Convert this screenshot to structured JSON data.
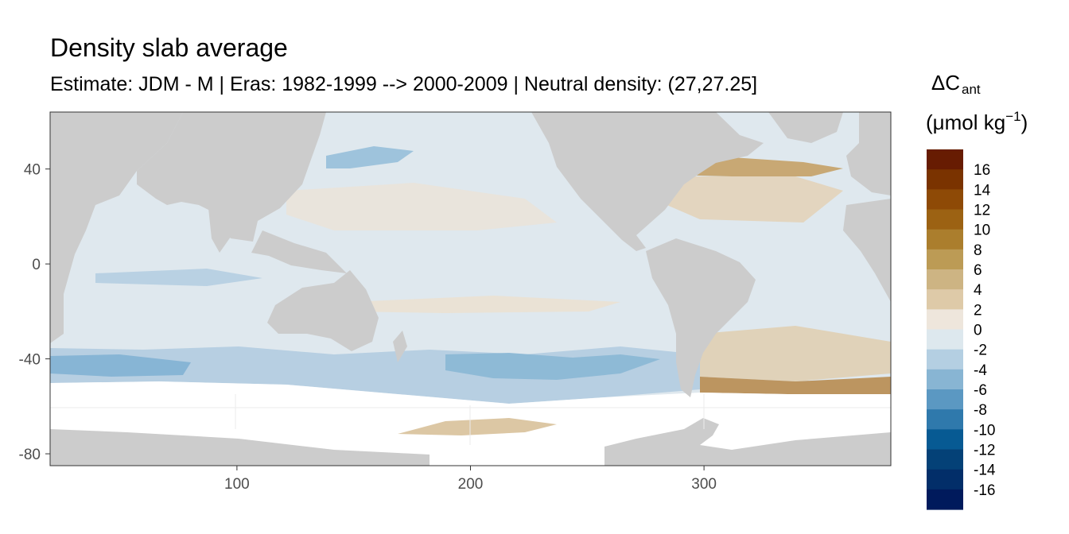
{
  "chart_data": {
    "type": "heatmap",
    "title": "Density slab average",
    "subtitle": "Estimate: JDM - M | Eras: 1982-1999 --> 2000-2009 | Neutral density: (27,27.25]",
    "legend": {
      "title_main": "ΔC",
      "title_sub": "ant",
      "title_unit": "(μmol kg",
      "title_unit_sup": "−1",
      "title_unit_close": ")",
      "placement": "right",
      "labels": [
        "16",
        "14",
        "12",
        "10",
        "8",
        "6",
        "4",
        "2",
        "0",
        "-2",
        "-4",
        "-6",
        "-8",
        "-10",
        "-12",
        "-14",
        "-16"
      ],
      "colors": [
        "#671c02",
        "#7a3300",
        "#8e4a06",
        "#9c6213",
        "#ab7e2d",
        "#bc9b55",
        "#cdb483",
        "#decaa8",
        "#eee6dc",
        "#dde8ee",
        "#b4cfe2",
        "#88b5d3",
        "#5b98c2",
        "#2f79ac",
        "#075a93",
        "#044177",
        "#022e69",
        "#001a5c"
      ]
    },
    "xlim": [
      20,
      380
    ],
    "ylim": [
      -85,
      64
    ],
    "x_ticks": [
      "100",
      "200",
      "300"
    ],
    "y_ticks": [
      "40",
      "0",
      "-40",
      "-80"
    ],
    "land_color": "#cccccc",
    "no_data_color": "#ffffff"
  }
}
